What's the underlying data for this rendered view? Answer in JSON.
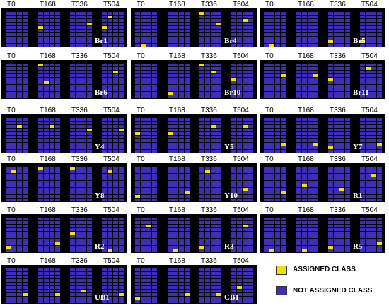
{
  "colors": {
    "not_assigned": "#3f2fb8",
    "assigned": "#f2e200",
    "panel_bg": "#000000"
  },
  "time_labels": [
    "T0",
    "T168",
    "T336",
    "T504"
  ],
  "panels": [
    {
      "id": "Br1",
      "assigned": [
        [
          1,
          4
        ],
        [
          2,
          3
        ],
        [
          3,
          4
        ],
        [
          3,
          1
        ]
      ]
    },
    {
      "id": "Br4",
      "assigned": [
        [
          0,
          9
        ],
        [
          2,
          0
        ],
        [
          2,
          3
        ],
        [
          3,
          2
        ]
      ]
    },
    {
      "id": "Br5",
      "assigned": [
        [
          0,
          9
        ],
        [
          2,
          8
        ],
        [
          3,
          8
        ]
      ]
    },
    {
      "id": "Br6",
      "assigned": [
        [
          1,
          0
        ],
        [
          3,
          2
        ],
        [
          1,
          5
        ]
      ]
    },
    {
      "id": "Br10",
      "assigned": [
        [
          2,
          0
        ],
        [
          2,
          2
        ],
        [
          1,
          8
        ],
        [
          3,
          4
        ]
      ]
    },
    {
      "id": "Br11",
      "assigned": [
        [
          0,
          3
        ],
        [
          1,
          3
        ],
        [
          2,
          4
        ],
        [
          3,
          1
        ]
      ]
    },
    {
      "id": "Y4",
      "assigned": [
        [
          0,
          2
        ],
        [
          1,
          2
        ],
        [
          2,
          3
        ],
        [
          3,
          3
        ]
      ]
    },
    {
      "id": "Y5",
      "assigned": [
        [
          0,
          4
        ],
        [
          1,
          4
        ],
        [
          2,
          2
        ],
        [
          3,
          2
        ]
      ]
    },
    {
      "id": "Y7",
      "assigned": [
        [
          0,
          7
        ],
        [
          1,
          7
        ],
        [
          2,
          8
        ],
        [
          3,
          7
        ]
      ]
    },
    {
      "id": "Y8",
      "assigned": [
        [
          0,
          1
        ],
        [
          1,
          0
        ],
        [
          2,
          0
        ],
        [
          3,
          1
        ]
      ]
    },
    {
      "id": "Y10",
      "assigned": [
        [
          0,
          8
        ],
        [
          1,
          7
        ],
        [
          2,
          1
        ],
        [
          3,
          6
        ]
      ]
    },
    {
      "id": "R1",
      "assigned": [
        [
          0,
          7
        ],
        [
          1,
          5
        ],
        [
          2,
          6
        ],
        [
          3,
          2
        ]
      ]
    },
    {
      "id": "R2",
      "assigned": [
        [
          0,
          8
        ],
        [
          1,
          7
        ],
        [
          2,
          4
        ],
        [
          3,
          9
        ]
      ]
    },
    {
      "id": "R3",
      "assigned": [
        [
          0,
          2
        ],
        [
          1,
          9
        ],
        [
          2,
          8
        ],
        [
          3,
          2
        ]
      ]
    },
    {
      "id": "R5",
      "assigned": [
        [
          0,
          9
        ],
        [
          1,
          9
        ],
        [
          2,
          8
        ],
        [
          3,
          7
        ]
      ]
    },
    {
      "id": "UB1",
      "assigned": [
        [
          0,
          7
        ],
        [
          1,
          7
        ],
        [
          2,
          6
        ],
        [
          3,
          7
        ]
      ]
    },
    {
      "id": "CB1",
      "assigned": [
        [
          0,
          8
        ],
        [
          1,
          7
        ],
        [
          2,
          7
        ],
        [
          3,
          5
        ]
      ]
    }
  ],
  "legend": {
    "assigned_label": "ASSIGNED CLASS",
    "not_assigned_label": "NOT ASSIGNED CLASS"
  }
}
